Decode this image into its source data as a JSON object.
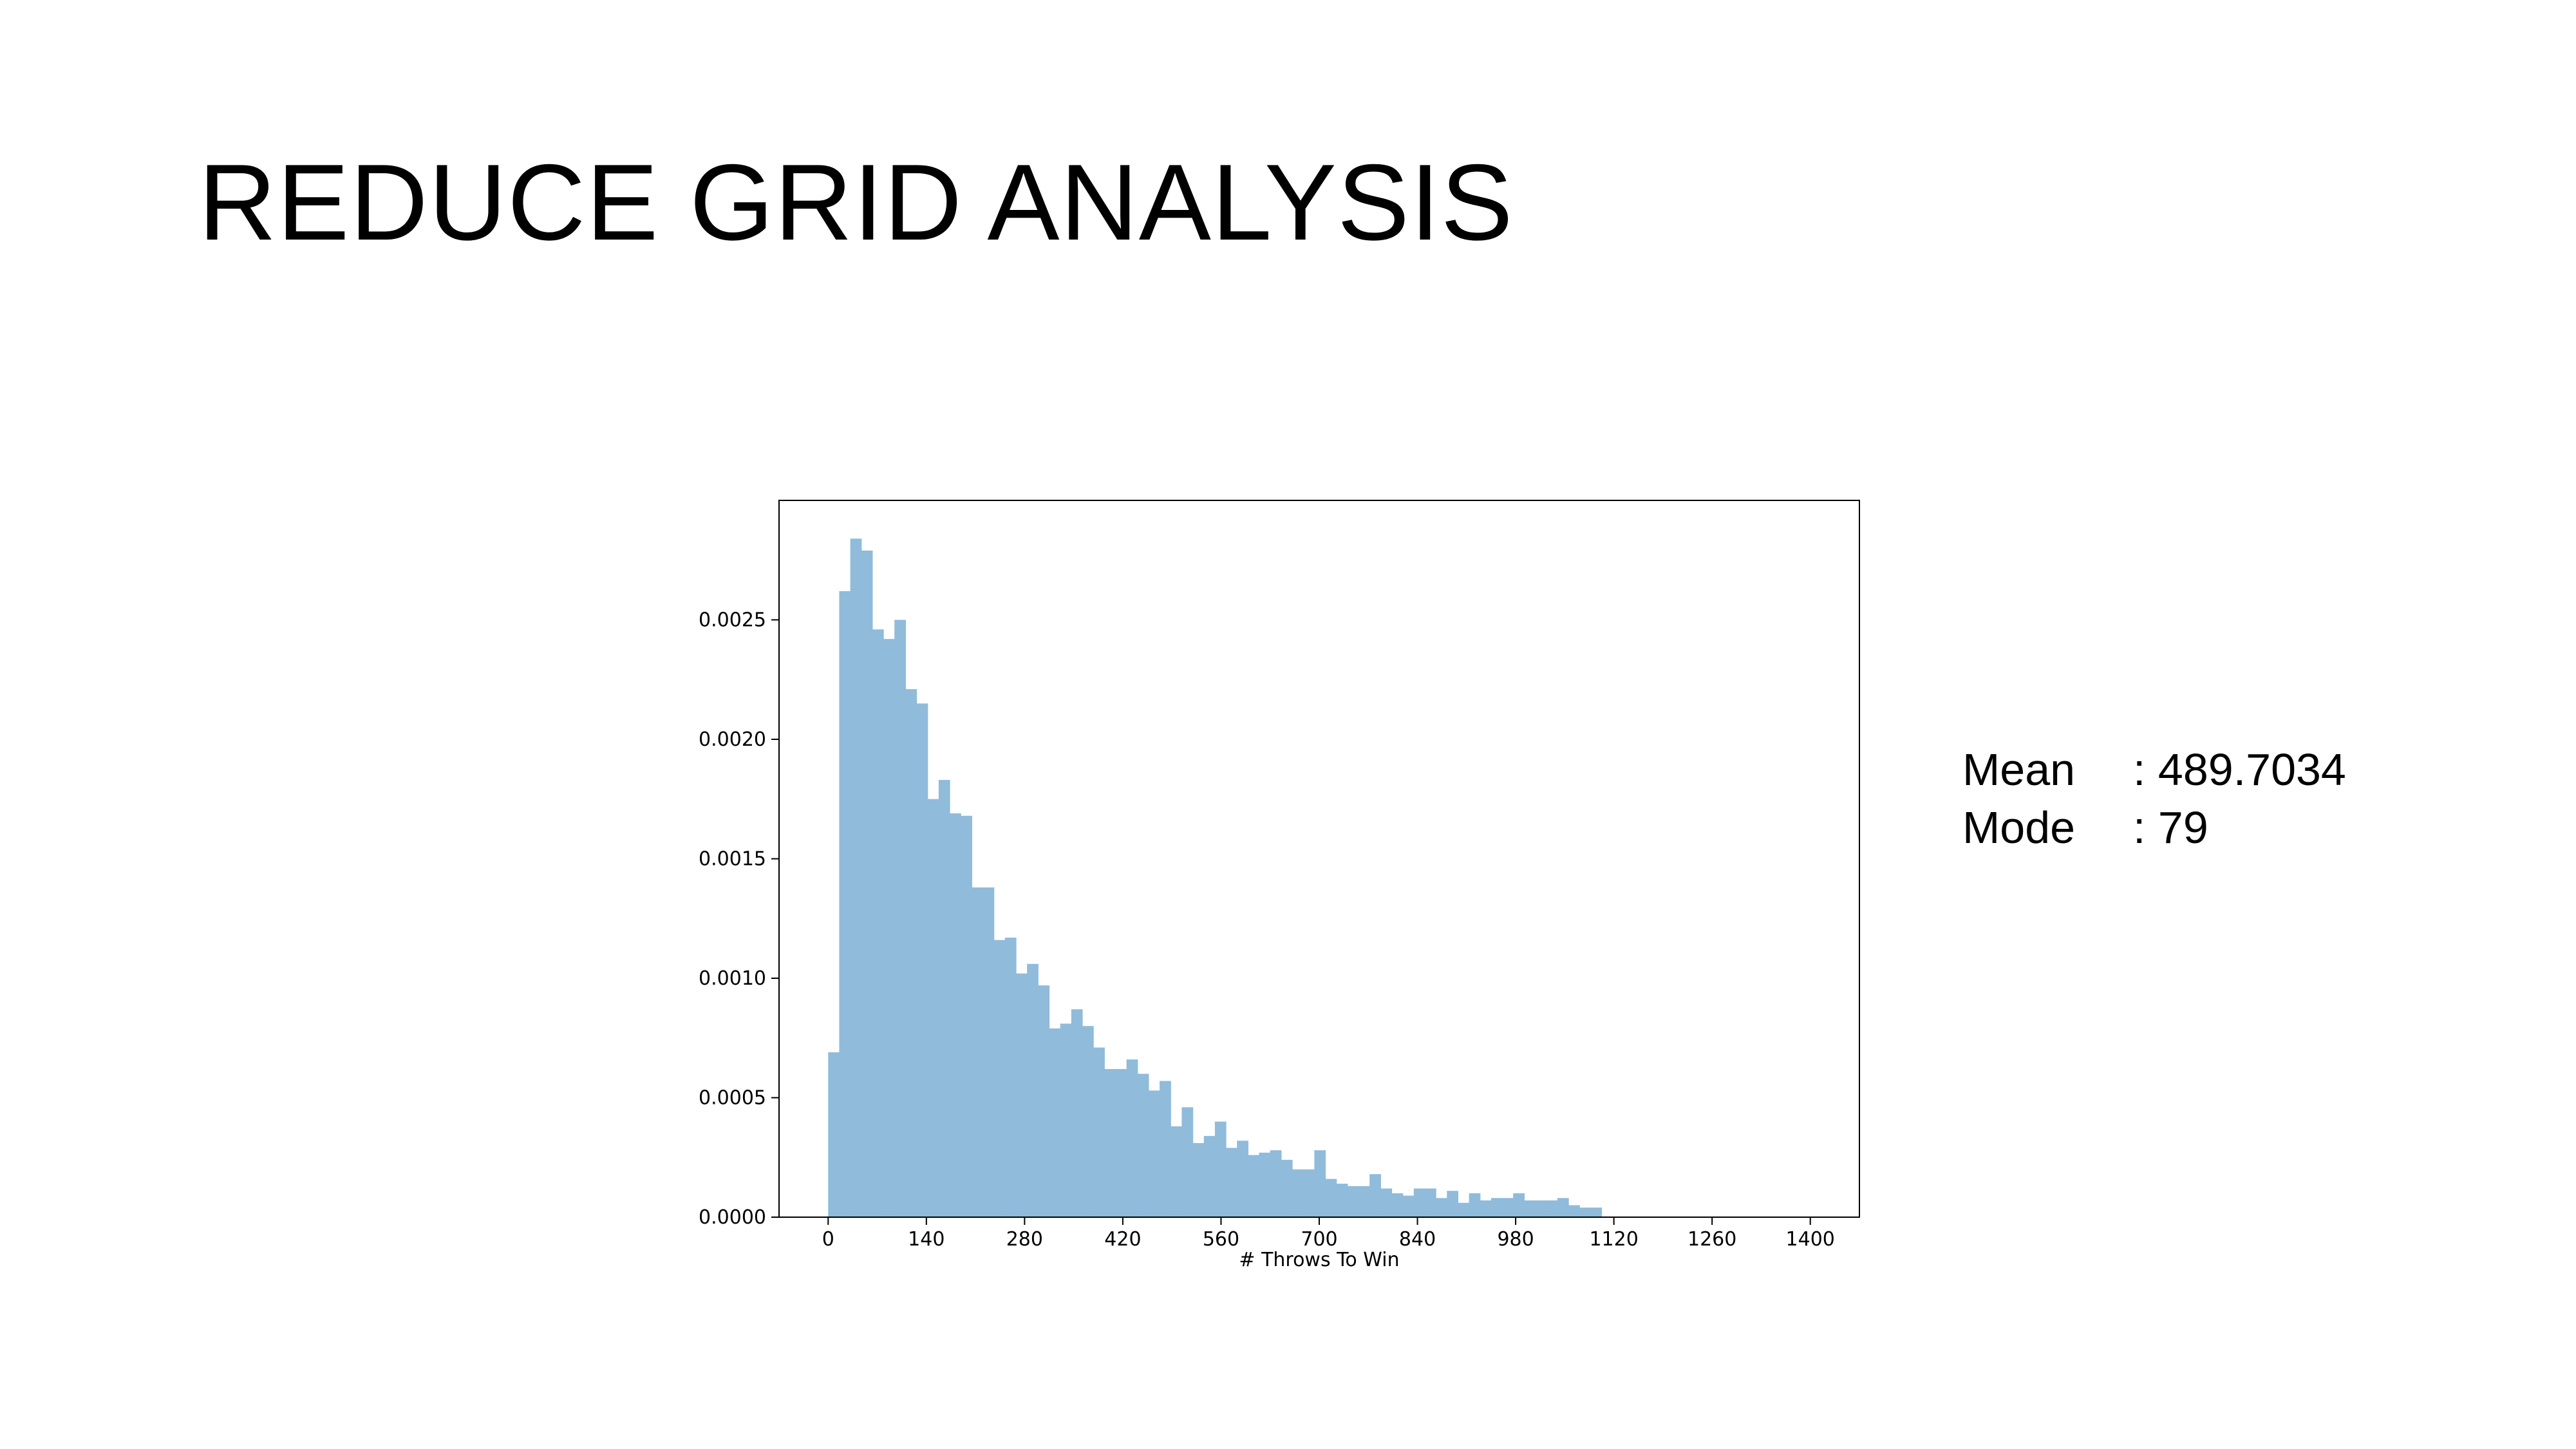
{
  "slide": {
    "title": "REDUCE GRID ANALYSIS"
  },
  "stats": [
    {
      "label": "Mean",
      "value": ": 489.7034"
    },
    {
      "label": "Mode",
      "value": ":  79"
    }
  ],
  "chart_data": {
    "type": "bar",
    "title": "",
    "xlabel": "# Throws To Win",
    "ylabel": "",
    "xlim": [
      -70,
      1470
    ],
    "ylim": [
      0,
      0.003
    ],
    "xticks": [
      0,
      140,
      280,
      420,
      560,
      700,
      840,
      980,
      1120,
      1260,
      1400
    ],
    "xtick_labels": [
      "0",
      "140",
      "280",
      "420",
      "560",
      "700",
      "840",
      "980",
      "1120",
      "1260",
      "1400"
    ],
    "yticks": [
      0,
      0.0005,
      0.001,
      0.0015,
      0.002,
      0.0025
    ],
    "ytick_labels": [
      "0.0000",
      "0.0005",
      "0.0010",
      "0.0015",
      "0.0020",
      "0.0025"
    ],
    "grid": false,
    "bar_color": "#90bbdb",
    "bin_start": 0,
    "bin_width": 15.75,
    "values": [
      0.00069,
      0.00262,
      0.00284,
      0.00279,
      0.00246,
      0.00242,
      0.0025,
      0.00221,
      0.00215,
      0.00175,
      0.00183,
      0.00169,
      0.00168,
      0.00138,
      0.00138,
      0.00116,
      0.00117,
      0.00102,
      0.00106,
      0.00097,
      0.00079,
      0.00081,
      0.00087,
      0.0008,
      0.00071,
      0.00062,
      0.00062,
      0.00066,
      0.0006,
      0.00053,
      0.00057,
      0.00038,
      0.00046,
      0.00031,
      0.00034,
      0.0004,
      0.00029,
      0.00032,
      0.00026,
      0.00027,
      0.00028,
      0.00024,
      0.0002,
      0.0002,
      0.00028,
      0.00016,
      0.00014,
      0.00013,
      0.00013,
      0.00018,
      0.00012,
      0.0001,
      9e-05,
      0.00012,
      0.00012,
      8e-05,
      0.00011,
      6e-05,
      0.0001,
      7e-05,
      8e-05,
      8e-05,
      0.0001,
      7e-05,
      7e-05,
      7e-05,
      8e-05,
      5e-05,
      4e-05,
      4e-05
    ]
  }
}
